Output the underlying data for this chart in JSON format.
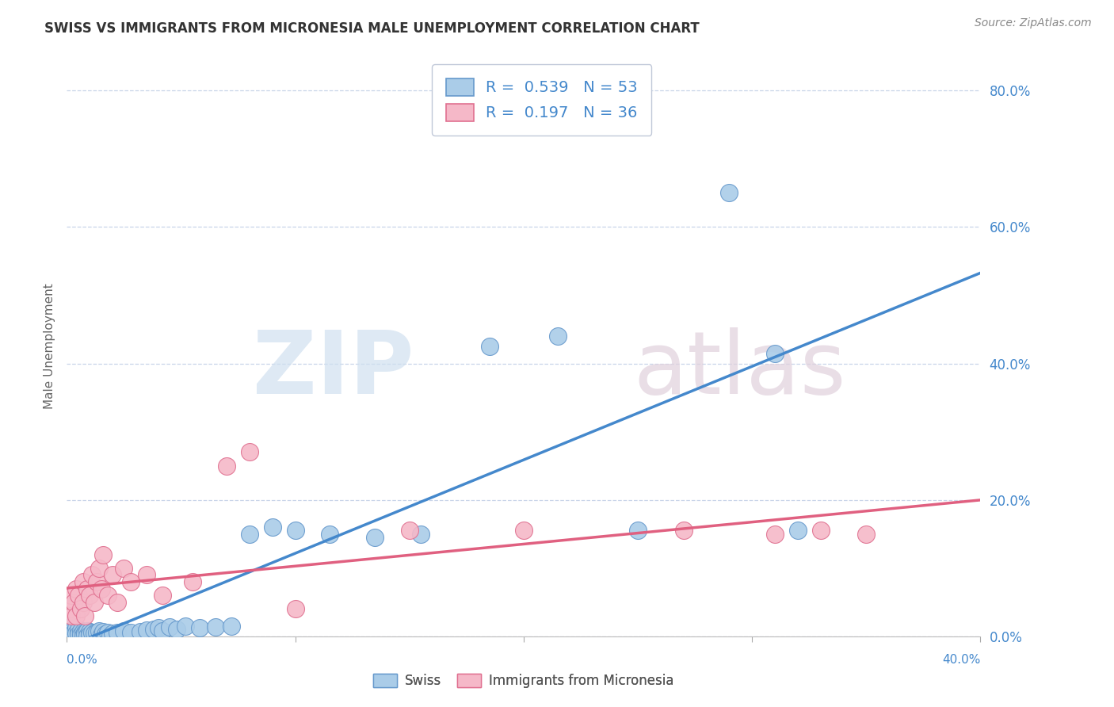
{
  "title": "SWISS VS IMMIGRANTS FROM MICRONESIA MALE UNEMPLOYMENT CORRELATION CHART",
  "source": "Source: ZipAtlas.com",
  "ylabel": "Male Unemployment",
  "xlim": [
    0.0,
    0.4
  ],
  "ylim": [
    0.0,
    0.85
  ],
  "swiss_color": "#aacce8",
  "swiss_edge_color": "#6699cc",
  "swiss_line_color": "#4488cc",
  "micronesia_color": "#f5b8c8",
  "micronesia_edge_color": "#e07090",
  "micronesia_line_color": "#e06080",
  "swiss_R": 0.539,
  "swiss_N": 53,
  "micronesia_R": 0.197,
  "micronesia_N": 36,
  "background_color": "#ffffff",
  "grid_color": "#c8d4e8",
  "ytick_values": [
    0.0,
    0.2,
    0.4,
    0.6,
    0.8
  ],
  "ytick_labels": [
    "0.0%",
    "20.0%",
    "40.0%",
    "60.0%",
    "80.0%"
  ],
  "legend_text_color": "#4488cc",
  "swiss_x": [
    0.002,
    0.003,
    0.003,
    0.004,
    0.004,
    0.005,
    0.005,
    0.006,
    0.006,
    0.007,
    0.007,
    0.008,
    0.008,
    0.009,
    0.009,
    0.01,
    0.01,
    0.011,
    0.012,
    0.013,
    0.014,
    0.015,
    0.016,
    0.017,
    0.018,
    0.019,
    0.02,
    0.022,
    0.025,
    0.028,
    0.032,
    0.035,
    0.038,
    0.04,
    0.042,
    0.045,
    0.048,
    0.052,
    0.058,
    0.065,
    0.072,
    0.08,
    0.09,
    0.1,
    0.115,
    0.135,
    0.155,
    0.185,
    0.215,
    0.25,
    0.29,
    0.32,
    0.31
  ],
  "swiss_y": [
    0.015,
    0.01,
    0.005,
    0.012,
    0.004,
    0.01,
    0.003,
    0.008,
    0.002,
    0.007,
    0.001,
    0.006,
    0.003,
    0.008,
    0.001,
    0.007,
    0.002,
    0.005,
    0.004,
    0.006,
    0.008,
    0.002,
    0.007,
    0.003,
    0.005,
    0.001,
    0.004,
    0.006,
    0.008,
    0.005,
    0.007,
    0.009,
    0.01,
    0.012,
    0.008,
    0.014,
    0.01,
    0.015,
    0.013,
    0.014,
    0.015,
    0.15,
    0.16,
    0.155,
    0.15,
    0.145,
    0.15,
    0.425,
    0.44,
    0.155,
    0.65,
    0.155,
    0.415
  ],
  "micronesia_x": [
    0.001,
    0.002,
    0.002,
    0.003,
    0.004,
    0.004,
    0.005,
    0.006,
    0.007,
    0.007,
    0.008,
    0.009,
    0.01,
    0.011,
    0.012,
    0.013,
    0.014,
    0.015,
    0.016,
    0.018,
    0.02,
    0.022,
    0.025,
    0.028,
    0.035,
    0.042,
    0.055,
    0.07,
    0.08,
    0.1,
    0.15,
    0.2,
    0.27,
    0.31,
    0.33,
    0.35
  ],
  "micronesia_y": [
    0.04,
    0.06,
    0.03,
    0.05,
    0.07,
    0.03,
    0.06,
    0.04,
    0.08,
    0.05,
    0.03,
    0.07,
    0.06,
    0.09,
    0.05,
    0.08,
    0.1,
    0.07,
    0.12,
    0.06,
    0.09,
    0.05,
    0.1,
    0.08,
    0.09,
    0.06,
    0.08,
    0.25,
    0.27,
    0.04,
    0.155,
    0.155,
    0.155,
    0.15,
    0.155,
    0.15
  ]
}
